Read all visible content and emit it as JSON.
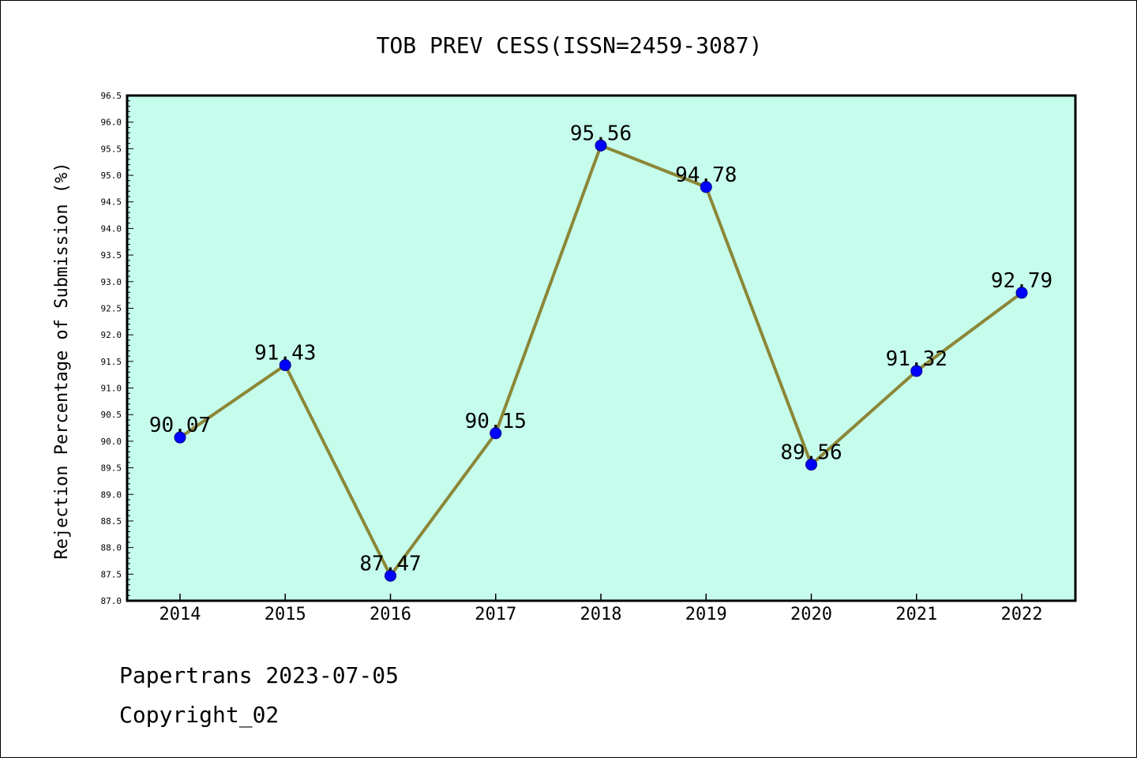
{
  "chart_data": {
    "type": "line",
    "title": "TOB PREV CESS(ISSN=2459-3087)",
    "xlabel": "",
    "ylabel": "Rejection Percentage of Submission (%)",
    "categories": [
      "2014",
      "2015",
      "2016",
      "2017",
      "2018",
      "2019",
      "2020",
      "2021",
      "2022"
    ],
    "series": [
      {
        "values": [
          90.07,
          91.43,
          87.47,
          90.15,
          95.56,
          94.78,
          89.56,
          91.32,
          92.79
        ],
        "labels": [
          "90.07",
          "91.43",
          "87.47",
          "90.15",
          "95.56",
          "94.78",
          "89.56",
          "91.32",
          "92.79"
        ]
      }
    ],
    "ylim": [
      87.0,
      96.5
    ],
    "yticks": [
      "87.0",
      "87.5",
      "88.0",
      "88.5",
      "89.0",
      "89.5",
      "90.0",
      "90.5",
      "91.0",
      "91.5",
      "92.0",
      "92.5",
      "93.0",
      "93.5",
      "94.0",
      "94.5",
      "95.0",
      "95.5",
      "96.0",
      "96.5"
    ],
    "grid": false,
    "colors": {
      "plot_background": "#c6fcec",
      "line": "#8b8737",
      "marker": "#0000ff"
    }
  },
  "footer": {
    "line1": "Papertrans 2023-07-05",
    "line2": "Copyright_02"
  }
}
